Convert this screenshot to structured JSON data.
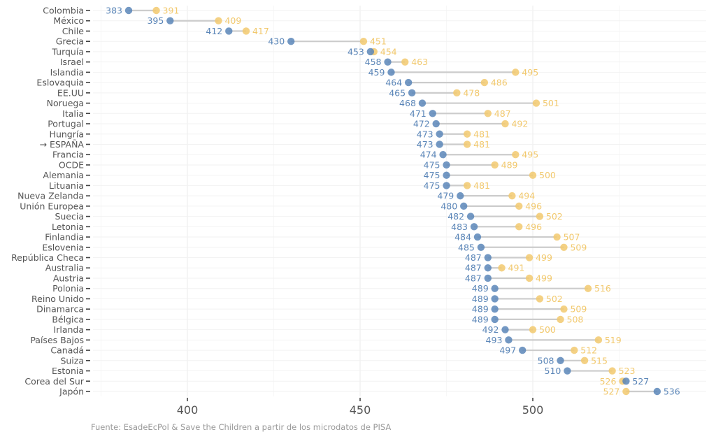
{
  "chart_data": {
    "type": "dumbbell",
    "title": "",
    "xlabel": "",
    "ylabel": "",
    "xlim": [
      372,
      549
    ],
    "xticks": [
      400,
      450,
      500
    ],
    "grid": true,
    "colors": {
      "blue": "#5b86b8",
      "yellow": "#f2c96e",
      "segment": "#cccccc",
      "grid": "#eeeeee"
    },
    "series": [
      {
        "name": "blue",
        "color": "#5b86b8"
      },
      {
        "name": "yellow",
        "color": "#f2c96e"
      }
    ],
    "rows": [
      {
        "label": "Colombia",
        "blue": 383,
        "yellow": 391
      },
      {
        "label": "México",
        "blue": 395,
        "yellow": 409
      },
      {
        "label": "Chile",
        "blue": 412,
        "yellow": 417
      },
      {
        "label": "Grecia",
        "blue": 430,
        "yellow": 451
      },
      {
        "label": "Turquía",
        "blue": 453,
        "yellow": 454
      },
      {
        "label": "Israel",
        "blue": 458,
        "yellow": 463
      },
      {
        "label": "Islandia",
        "blue": 459,
        "yellow": 495
      },
      {
        "label": "Eslovaquia",
        "blue": 464,
        "yellow": 486
      },
      {
        "label": "EE.UU",
        "blue": 465,
        "yellow": 478
      },
      {
        "label": "Noruega",
        "blue": 468,
        "yellow": 501
      },
      {
        "label": "Italia",
        "blue": 471,
        "yellow": 487
      },
      {
        "label": "Portugal",
        "blue": 472,
        "yellow": 492
      },
      {
        "label": "Hungría",
        "blue": 473,
        "yellow": 481
      },
      {
        "label": "→ ESPAÑA",
        "blue": 473,
        "yellow": 481
      },
      {
        "label": "Francia",
        "blue": 474,
        "yellow": 495
      },
      {
        "label": "OCDE",
        "blue": 475,
        "yellow": 489
      },
      {
        "label": "Alemania",
        "blue": 475,
        "yellow": 500
      },
      {
        "label": "Lituania",
        "blue": 475,
        "yellow": 481
      },
      {
        "label": "Nueva Zelanda",
        "blue": 479,
        "yellow": 494
      },
      {
        "label": "Unión Europea",
        "blue": 480,
        "yellow": 496
      },
      {
        "label": "Suecia",
        "blue": 482,
        "yellow": 502
      },
      {
        "label": "Letonia",
        "blue": 483,
        "yellow": 496
      },
      {
        "label": "Finlandia",
        "blue": 484,
        "yellow": 507
      },
      {
        "label": "Eslovenia",
        "blue": 485,
        "yellow": 509
      },
      {
        "label": "República Checa",
        "blue": 487,
        "yellow": 499
      },
      {
        "label": "Australia",
        "blue": 487,
        "yellow": 491
      },
      {
        "label": "Austria",
        "blue": 487,
        "yellow": 499
      },
      {
        "label": "Polonia",
        "blue": 489,
        "yellow": 516
      },
      {
        "label": "Reino Unido",
        "blue": 489,
        "yellow": 502
      },
      {
        "label": "Dinamarca",
        "blue": 489,
        "yellow": 509
      },
      {
        "label": "Bélgica",
        "blue": 489,
        "yellow": 508
      },
      {
        "label": "Irlanda",
        "blue": 492,
        "yellow": 500
      },
      {
        "label": "Países Bajos",
        "blue": 493,
        "yellow": 519
      },
      {
        "label": "Canadá",
        "blue": 497,
        "yellow": 512
      },
      {
        "label": "Suiza",
        "blue": 508,
        "yellow": 515
      },
      {
        "label": "Estonia",
        "blue": 510,
        "yellow": 523
      },
      {
        "label": "Corea del Sur",
        "blue": 527,
        "yellow": 526
      },
      {
        "label": "Japón",
        "blue": 536,
        "yellow": 527
      }
    ],
    "source": "Fuente: EsadeEcPol & Save the Children a partir de los microdatos de PISA"
  }
}
